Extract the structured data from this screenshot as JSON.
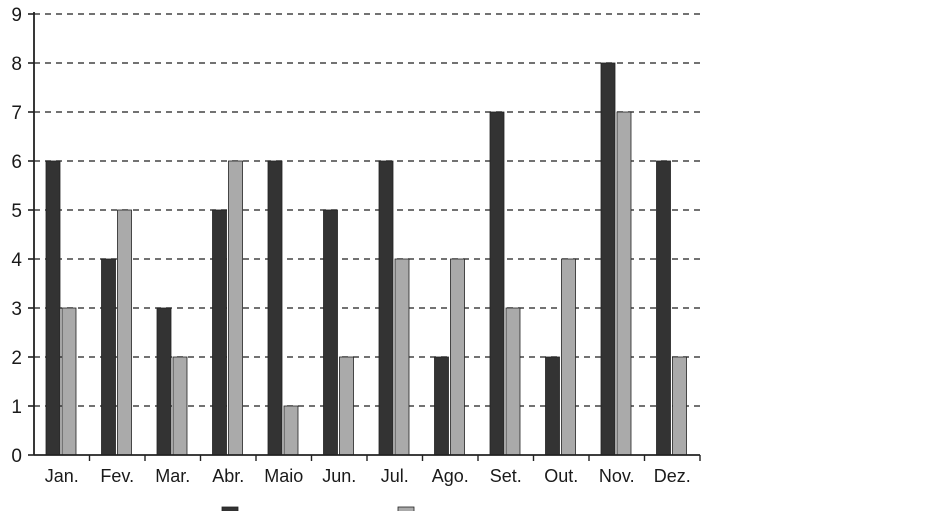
{
  "chart_data": {
    "type": "bar",
    "categories": [
      "Jan.",
      "Fev.",
      "Mar.",
      "Abr.",
      "Maio",
      "Jun.",
      "Jul.",
      "Ago.",
      "Set.",
      "Out.",
      "Nov.",
      "Dez."
    ],
    "series": [
      {
        "values": [
          6,
          4,
          3,
          5,
          6,
          5,
          6,
          2,
          7,
          2,
          8,
          6
        ],
        "color": "#333333"
      },
      {
        "values": [
          3,
          5,
          2,
          6,
          1,
          2,
          4,
          4,
          3,
          4,
          7,
          2
        ],
        "color": "#aaaaaa"
      }
    ],
    "ylim": [
      0,
      9
    ],
    "yticks": [
      0,
      1,
      2,
      3,
      4,
      5,
      6,
      7,
      8,
      9
    ],
    "grid": true,
    "grid_style": "dashed",
    "legend_position": "bottom"
  }
}
